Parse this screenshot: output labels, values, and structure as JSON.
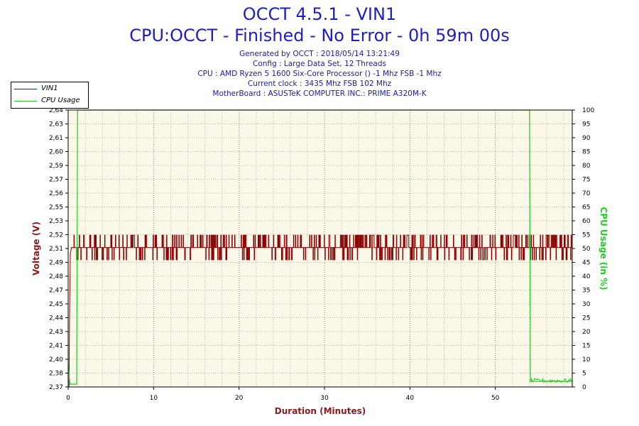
{
  "header": {
    "title": "OCCT 4.5.1 - VIN1",
    "subtitle": "CPU:OCCT - Finished - No Error - 0h 59m 00s",
    "info_lines": [
      "Generated by OCCT : 2018/05/14 13:21:49",
      "Config : Large Data Set, 12 Threads",
      "CPU : AMD Ryzen 5 1600 Six-Core Processor () -1 Mhz FSB -1 Mhz",
      "Current clock : 3435 Mhz FSB 102 Mhz",
      "MotherBoard : ASUSTeK COMPUTER INC.: PRIME A320M-K"
    ]
  },
  "legend": {
    "items": [
      {
        "label": "VIN1",
        "color": "#8b0000"
      },
      {
        "label": "CPU Usage",
        "color": "#22cc22"
      }
    ]
  },
  "chart_data": {
    "type": "line",
    "xlabel": "Duration (Minutes)",
    "ylabel": "Voltage (V)",
    "y2label": "CPU Usage (in %)",
    "xlim": [
      0,
      59
    ],
    "x_ticks": [
      "0",
      "10",
      "20",
      "30",
      "40",
      "50"
    ],
    "x_tick_values": [
      0,
      10,
      20,
      30,
      40,
      50
    ],
    "ylim": [
      2.37,
      2.64
    ],
    "y_ticks": [
      "2,37",
      "2,38",
      "2,40",
      "2,41",
      "2,43",
      "2,44",
      "2,45",
      "2,47",
      "2,48",
      "2,49",
      "2,51",
      "2,52",
      "2,53",
      "2,55",
      "2,56",
      "2,57",
      "2,59",
      "2,60",
      "2,61",
      "2,63",
      "2,64"
    ],
    "y2lim": [
      0,
      100
    ],
    "y2_ticks": [
      "0",
      "5",
      "10",
      "15",
      "20",
      "25",
      "30",
      "35",
      "40",
      "45",
      "50",
      "55",
      "60",
      "65",
      "70",
      "75",
      "80",
      "85",
      "90",
      "95",
      "100"
    ],
    "grid": true,
    "series": [
      {
        "name": "VIN1",
        "color": "#8b0000",
        "axis": "left",
        "baseline": 2.506,
        "min": 2.494,
        "max": 2.518,
        "x_start": 0.2,
        "x_end": 59,
        "points": [
          [
            0,
            2.37
          ],
          [
            0.1,
            2.37
          ],
          [
            0.15,
            2.43
          ],
          [
            0.25,
            2.5
          ],
          [
            0.4,
            2.506
          ],
          [
            59,
            2.506
          ]
        ]
      },
      {
        "name": "CPU Usage",
        "color": "#22cc22",
        "axis": "right",
        "points": [
          [
            0,
            8
          ],
          [
            0.2,
            1
          ],
          [
            1,
            1
          ],
          [
            1.1,
            100
          ],
          [
            54,
            100
          ],
          [
            54.1,
            2
          ],
          [
            59,
            2
          ]
        ]
      }
    ],
    "plot_background": "#fbf8e9"
  },
  "colors": {
    "title": "#1e1ec8",
    "info": "#2020a0",
    "left_axis_label": "#8b1a1a",
    "right_axis_label": "#22cc22",
    "x_axis_label": "#8b1a1a"
  }
}
